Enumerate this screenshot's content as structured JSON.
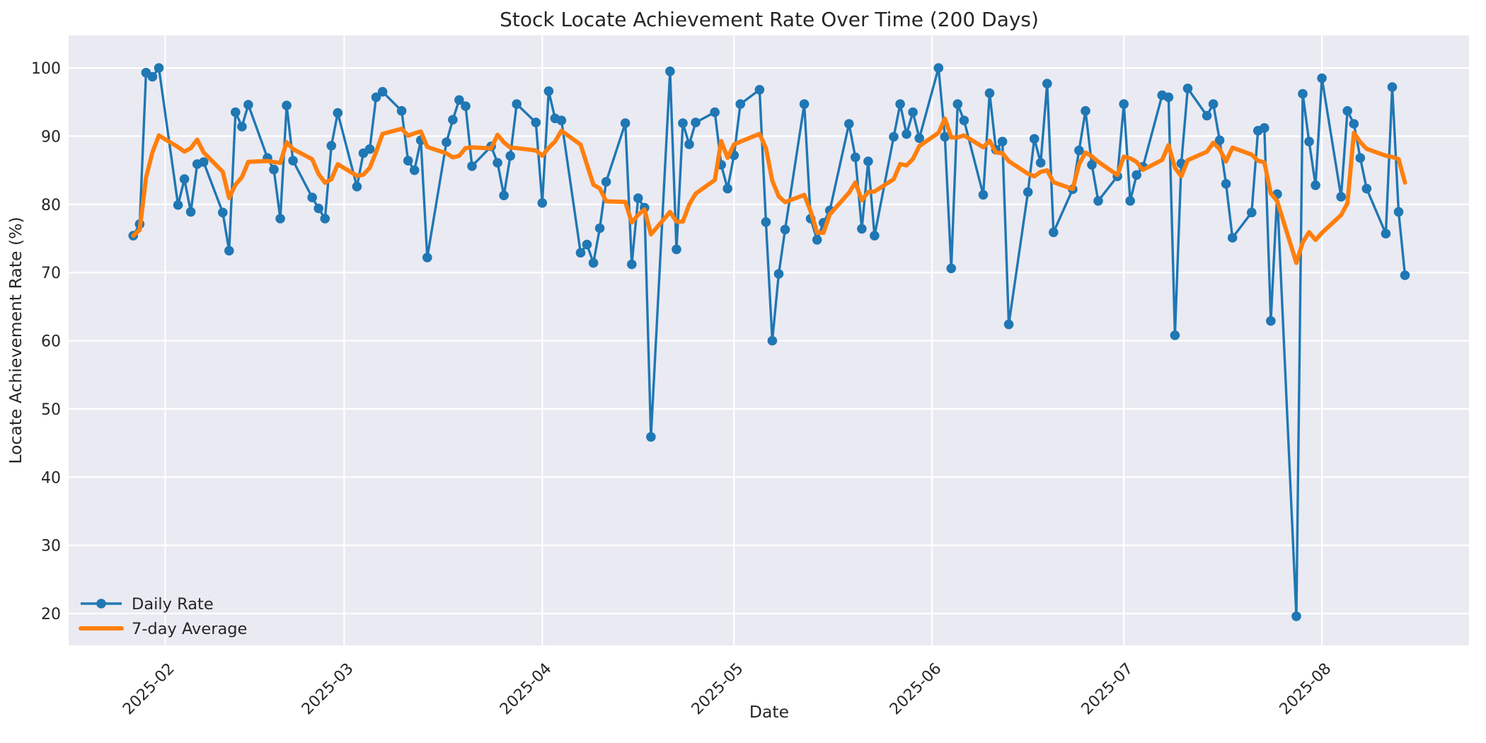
{
  "chart_data": {
    "type": "line",
    "title": "Stock Locate Achievement Rate Over Time (200 Days)",
    "xlabel": "Date",
    "ylabel": "Locate Achievement Rate (%)",
    "x_tick_labels": [
      "2025-02",
      "2025-03",
      "2025-04",
      "2025-05",
      "2025-06",
      "2025-07",
      "2025-08"
    ],
    "y_ticks": [
      20,
      30,
      40,
      50,
      60,
      70,
      80,
      90,
      100
    ],
    "ylim": [
      15.3,
      104.8
    ],
    "grid": true,
    "plot_background": "#eaeaf2",
    "grid_color": "#ffffff",
    "legend_position": "lower left",
    "series": [
      {
        "name": "Daily Rate",
        "color": "#1f77b4",
        "marker": "circle",
        "dates": [
          "2025-01-27",
          "2025-01-28",
          "2025-01-29",
          "2025-01-30",
          "2025-01-31",
          "2025-02-03",
          "2025-02-04",
          "2025-02-05",
          "2025-02-06",
          "2025-02-07",
          "2025-02-10",
          "2025-02-11",
          "2025-02-12",
          "2025-02-13",
          "2025-02-14",
          "2025-02-17",
          "2025-02-18",
          "2025-02-19",
          "2025-02-20",
          "2025-02-21",
          "2025-02-24",
          "2025-02-25",
          "2025-02-26",
          "2025-02-27",
          "2025-02-28",
          "2025-03-03",
          "2025-03-04",
          "2025-03-05",
          "2025-03-06",
          "2025-03-07",
          "2025-03-10",
          "2025-03-11",
          "2025-03-12",
          "2025-03-13",
          "2025-03-14",
          "2025-03-17",
          "2025-03-18",
          "2025-03-19",
          "2025-03-20",
          "2025-03-21",
          "2025-03-24",
          "2025-03-25",
          "2025-03-26",
          "2025-03-27",
          "2025-03-28",
          "2025-03-31",
          "2025-04-01",
          "2025-04-02",
          "2025-04-03",
          "2025-04-04",
          "2025-04-07",
          "2025-04-08",
          "2025-04-09",
          "2025-04-10",
          "2025-04-11",
          "2025-04-14",
          "2025-04-15",
          "2025-04-16",
          "2025-04-17",
          "2025-04-18",
          "2025-04-21",
          "2025-04-22",
          "2025-04-23",
          "2025-04-24",
          "2025-04-25",
          "2025-04-28",
          "2025-04-29",
          "2025-04-30",
          "2025-05-01",
          "2025-05-02",
          "2025-05-05",
          "2025-05-06",
          "2025-05-07",
          "2025-05-08",
          "2025-05-09",
          "2025-05-12",
          "2025-05-13",
          "2025-05-14",
          "2025-05-15",
          "2025-05-16",
          "2025-05-19",
          "2025-05-20",
          "2025-05-21",
          "2025-05-22",
          "2025-05-23",
          "2025-05-26",
          "2025-05-27",
          "2025-05-28",
          "2025-05-29",
          "2025-05-30",
          "2025-06-02",
          "2025-06-03",
          "2025-06-04",
          "2025-06-05",
          "2025-06-06",
          "2025-06-09",
          "2025-06-10",
          "2025-06-11",
          "2025-06-12",
          "2025-06-13",
          "2025-06-16",
          "2025-06-17",
          "2025-06-18",
          "2025-06-19",
          "2025-06-20",
          "2025-06-23",
          "2025-06-24",
          "2025-06-25",
          "2025-06-26",
          "2025-06-27",
          "2025-06-30",
          "2025-07-01",
          "2025-07-02",
          "2025-07-03",
          "2025-07-04",
          "2025-07-07",
          "2025-07-08",
          "2025-07-09",
          "2025-07-10",
          "2025-07-11",
          "2025-07-14",
          "2025-07-15",
          "2025-07-16",
          "2025-07-17",
          "2025-07-18",
          "2025-07-21",
          "2025-07-22",
          "2025-07-23",
          "2025-07-24",
          "2025-07-25",
          "2025-07-28",
          "2025-07-29",
          "2025-07-30",
          "2025-07-31",
          "2025-08-01",
          "2025-08-04",
          "2025-08-05",
          "2025-08-06",
          "2025-08-07",
          "2025-08-08",
          "2025-08-11",
          "2025-08-12",
          "2025-08-13",
          "2025-08-14"
        ],
        "values": [
          75.4,
          77.1,
          99.3,
          98.7,
          100.0,
          79.9,
          83.7,
          78.9,
          85.9,
          86.2,
          78.8,
          73.2,
          93.5,
          91.4,
          94.6,
          86.8,
          85.1,
          77.9,
          94.5,
          86.4,
          81.0,
          79.4,
          77.9,
          88.6,
          93.4,
          82.6,
          87.5,
          88.1,
          95.7,
          96.5,
          93.7,
          86.4,
          85.0,
          89.4,
          72.2,
          89.1,
          92.4,
          95.3,
          94.4,
          85.6,
          88.5,
          86.1,
          81.3,
          87.1,
          94.7,
          92.0,
          80.2,
          96.6,
          92.6,
          92.3,
          72.9,
          74.1,
          71.4,
          76.5,
          83.3,
          91.9,
          71.2,
          80.9,
          79.5,
          45.9,
          99.5,
          73.4,
          91.9,
          88.8,
          92.0,
          93.5,
          85.8,
          82.3,
          87.2,
          94.7,
          96.8,
          77.4,
          60.0,
          69.8,
          76.3,
          94.7,
          77.9,
          74.8,
          77.3,
          79.1,
          91.8,
          86.9,
          76.4,
          86.3,
          75.4,
          89.9,
          94.7,
          90.3,
          93.5,
          89.7,
          100.0,
          89.9,
          70.6,
          94.7,
          92.3,
          81.4,
          96.3,
          88.0,
          89.2,
          62.4,
          81.8,
          89.6,
          86.1,
          97.7,
          75.9,
          82.2,
          87.9,
          93.7,
          85.8,
          80.5,
          84.1,
          94.7,
          80.5,
          84.3,
          85.5,
          96.0,
          95.7,
          60.8,
          86.0,
          97.0,
          93.0,
          94.7,
          89.4,
          83.0,
          75.1,
          78.8,
          90.8,
          91.2,
          62.9,
          81.5,
          19.6,
          96.2,
          89.2,
          82.8,
          98.5,
          81.1,
          93.7,
          91.8,
          86.8,
          82.3,
          75.7,
          97.2,
          78.9,
          69.6
        ]
      },
      {
        "name": "7-day Average",
        "color": "#ff7f0e",
        "marker": "none",
        "derived_from": "Daily Rate",
        "derivation": "trailing mean of last 7 trading-day values (min 1)",
        "window": 7
      }
    ]
  }
}
